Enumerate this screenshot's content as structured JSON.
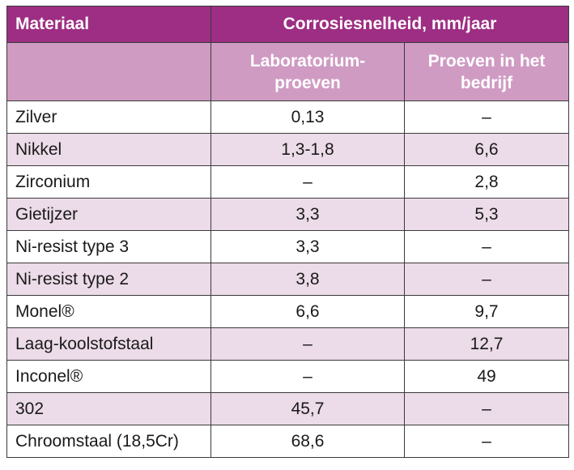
{
  "header": {
    "col1": "Materiaal",
    "group": "Corrosiesnelheid, mm/jaar",
    "sub1_line1": "Laboratorium-",
    "sub1_line2": "proeven",
    "sub2_line1": "Proeven in het",
    "sub2_line2": "bedrijf"
  },
  "colors": {
    "header_bg": "#9d2e83",
    "subheader_bg": "#cf9bc3",
    "alt_row_bg": "#ecdbe8"
  },
  "rows": [
    {
      "material": "Zilver",
      "lab": "0,13",
      "field": "–"
    },
    {
      "material": "Nikkel",
      "lab": "1,3-1,8",
      "field": "6,6"
    },
    {
      "material": "Zirconium",
      "lab": "–",
      "field": "2,8"
    },
    {
      "material": "Gietijzer",
      "lab": "3,3",
      "field": "5,3"
    },
    {
      "material": "Ni-resist type 3",
      "lab": "3,3",
      "field": "–"
    },
    {
      "material": "Ni-resist type 2",
      "lab": "3,8",
      "field": "–"
    },
    {
      "material": "Monel®",
      "lab": "6,6",
      "field": "9,7"
    },
    {
      "material": "Laag-koolstofstaal",
      "lab": "–",
      "field": "12,7"
    },
    {
      "material": "Inconel®",
      "lab": "–",
      "field": "49"
    },
    {
      "material": "302",
      "lab": "45,7",
      "field": "–"
    },
    {
      "material": "Chroomstaal (18,5Cr)",
      "lab": "68,6",
      "field": "–"
    }
  ]
}
